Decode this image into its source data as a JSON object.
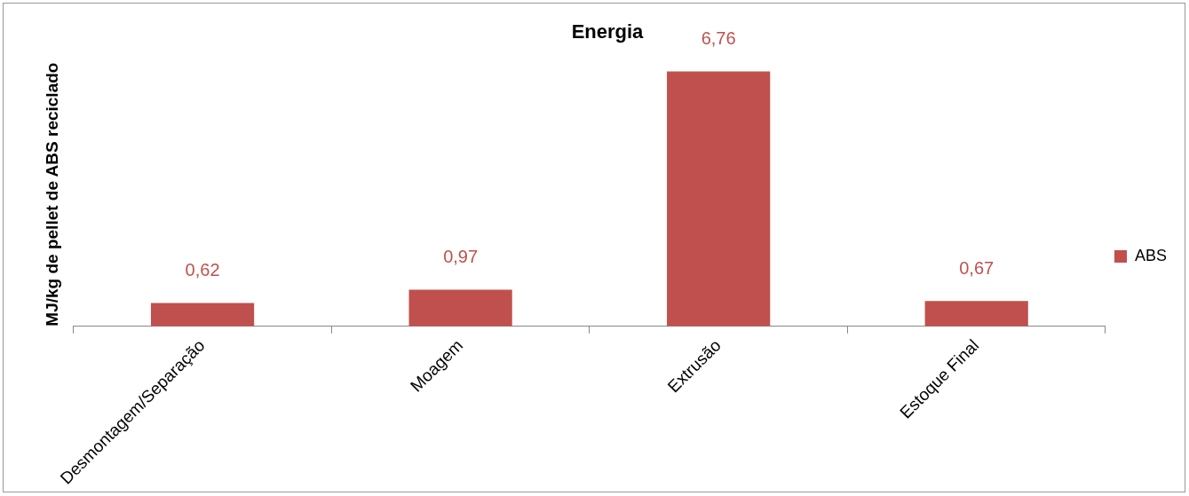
{
  "chart_data": {
    "type": "bar",
    "title": "Energia",
    "ylabel": "MJ/kg de pellet de ABS reciclado",
    "categories": [
      "Desmontagem/Separação",
      "Moagem",
      "Extrusão",
      "Estoque Final"
    ],
    "series": [
      {
        "name": "ABS",
        "color": "#c0504d",
        "values": [
          0.62,
          0.97,
          6.76,
          0.67
        ],
        "value_labels": [
          "0,62",
          "0,97",
          "6,76",
          "0,67"
        ]
      }
    ],
    "legend": "right",
    "grid": false
  }
}
